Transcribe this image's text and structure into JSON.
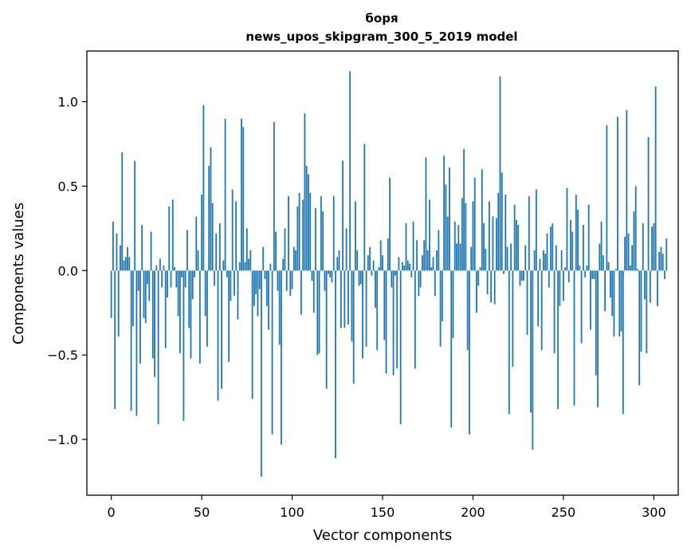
{
  "chart_data": {
    "type": "bar",
    "title": "боря",
    "subtitle": "news_upos_skipgram_300_5_2019 model",
    "xlabel": "Vector components",
    "ylabel": "Components values",
    "xlim": [
      -13.5,
      313.5
    ],
    "ylim": [
      -1.33,
      1.3
    ],
    "xticks": [
      0,
      50,
      100,
      150,
      200,
      250,
      300
    ],
    "yticks": [
      -1.0,
      -0.5,
      0.0,
      0.5,
      1.0
    ],
    "xtick_labels": [
      "0",
      "50",
      "100",
      "150",
      "200",
      "250",
      "300"
    ],
    "ytick_labels": [
      "−1.0",
      "−0.5",
      "0.0",
      "0.5",
      "1.0"
    ],
    "bar_color": "#1f77b4",
    "grid": false,
    "values": [
      -0.28,
      0.29,
      -0.82,
      0.22,
      -0.39,
      0.15,
      0.7,
      0.06,
      0.08,
      0.14,
      0.08,
      -0.83,
      -0.33,
      0.65,
      -0.86,
      -0.12,
      -0.55,
      0.27,
      -0.28,
      -0.31,
      -0.08,
      -0.18,
      0.23,
      -0.52,
      -0.63,
      0.03,
      -0.91,
      0.07,
      -0.1,
      0.03,
      -0.46,
      -0.16,
      0.38,
      -0.1,
      0.42,
      0.02,
      -0.1,
      -0.27,
      -0.49,
      -0.04,
      -0.89,
      -0.1,
      0.24,
      -0.34,
      -0.52,
      -0.17,
      -0.04,
      0.32,
      0.12,
      -0.55,
      0.45,
      0.98,
      -0.27,
      -0.45,
      0.62,
      0.73,
      0.4,
      -0.09,
      0.22,
      -0.77,
      0.28,
      -0.7,
      0.06,
      0.9,
      -0.04,
      -0.54,
      -0.18,
      0.48,
      -0.15,
      0.41,
      -0.29,
      0.05,
      0.9,
      0.85,
      0.05,
      0.25,
      0.07,
      0.12,
      -0.76,
      -0.21,
      -0.14,
      -0.27,
      -0.11,
      -1.22,
      0.14,
      -0.05,
      -0.21,
      -0.35,
      0.04,
      -0.97,
      0.88,
      0.23,
      -0.12,
      -0.44,
      -1.03,
      0.07,
      0.25,
      -0.12,
      0.44,
      -0.15,
      -0.11,
      0.14,
      0.12,
      0.38,
      0.46,
      -0.26,
      0.42,
      0.93,
      0.62,
      0.57,
      0.46,
      -0.06,
      -0.25,
      0.37,
      -0.5,
      -0.49,
      0.44,
      0.35,
      -0.12,
      -0.7,
      -0.02,
      -0.04,
      -0.07,
      0.44,
      -1.11,
      0.08,
      0.12,
      -0.34,
      0.65,
      -0.34,
      0.25,
      -0.32,
      1.18,
      -0.42,
      -0.67,
      0.41,
      0.12,
      -0.09,
      -0.08,
      -0.52,
      0.75,
      -0.45,
      0.09,
      0.14,
      -0.03,
      0.06,
      -0.22,
      -0.47,
      0.02,
      0.18,
      0.09,
      -0.41,
      -0.61,
      0.19,
      0.55,
      -0.1,
      -0.62,
      -0.03,
      -0.58,
      0.08,
      -0.91,
      0.05,
      0.03,
      0.28,
      0.06,
      0.04,
      -0.04,
      0.29,
      -0.58,
      0.18,
      -0.15,
      -0.1,
      0.09,
      0.18,
      0.67,
      0.12,
      0.42,
      0.02,
      0.08,
      -0.15,
      0.12,
      0.24,
      -0.45,
      -0.3,
      0.68,
      0.51,
      0.32,
      0.61,
      -0.93,
      -0.4,
      0.29,
      0.16,
      0.27,
      0.16,
      0.43,
      0.72,
      0.4,
      -0.47,
      -0.97,
      0.14,
      0.41,
      0.55,
      -0.25,
      -0.09,
      0.02,
      0.6,
      0.28,
      0.13,
      -0.14,
      0.41,
      -0.19,
      0.32,
      -0.2,
      0.31,
      0.46,
      1.15,
      0.58,
      -0.02,
      0.45,
      0.14,
      -0.85,
      0.16,
      -0.57,
      0.39,
      0.3,
      0.27,
      -0.09,
      -0.06,
      -0.06,
      0.15,
      -0.38,
      0.44,
      -0.84,
      -1.06,
      0.12,
      0.48,
      -0.33,
      0.07,
      -0.47,
      0.12,
      0.1,
      0.22,
      -0.1,
      0.26,
      0.28,
      -0.49,
      0.15,
      -0.82,
      -0.21,
      0.12,
      -0.18,
      0.02,
      0.49,
      -0.07,
      0.3,
      0.23,
      -0.8,
      0.45,
      0.36,
      0.03,
      -0.43,
      0.27,
      -0.04,
      0.03,
      0.39,
      -0.35,
      -0.05,
      -0.05,
      -0.62,
      -0.81,
      0.16,
      0.29,
      0.09,
      -0.24,
      0.86,
      0.05,
      -0.16,
      -0.27,
      -0.39,
      0.01,
      0.91,
      -0.39,
      -0.36,
      -0.85,
      0.2,
      0.95,
      0.22,
      0.03,
      0.15,
      0.35,
      0.5,
      0.01,
      -0.68,
      -0.48,
      0.28,
      -0.17,
      -0.49,
      0.79,
      -0.19,
      0.26,
      0.28,
      1.09,
      -0.21,
      0.11,
      0.14,
      0.1,
      -0.05,
      0.19
    ]
  }
}
